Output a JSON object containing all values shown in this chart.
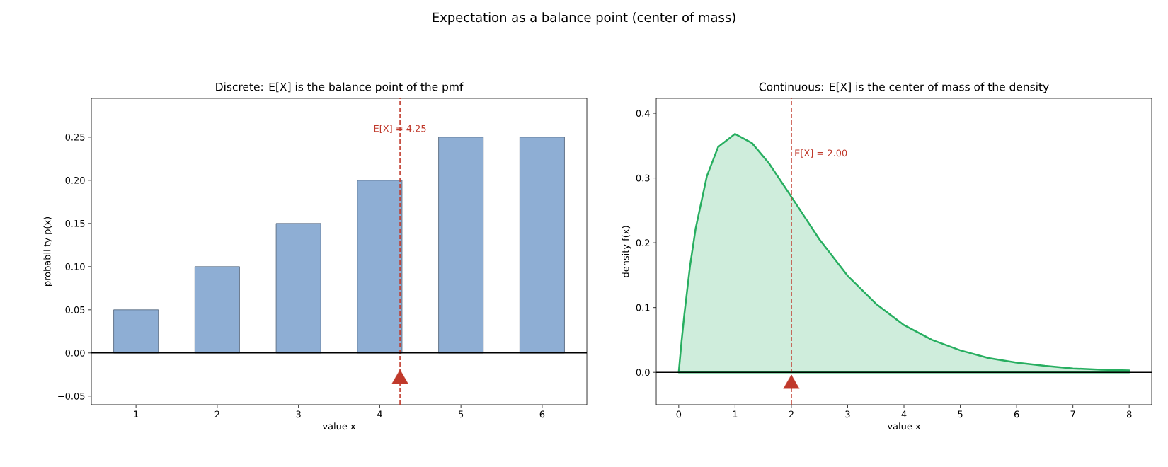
{
  "chart_data": [
    {
      "type": "bar",
      "title": "Discrete: E[X] is the balance point of the pmf",
      "xlabel": "value x",
      "ylabel": "probability p(x)",
      "x": [
        1,
        2,
        3,
        4,
        5,
        6
      ],
      "series": [
        {
          "color": "#8eaed4",
          "values": [
            0.05,
            0.1,
            0.15,
            0.2,
            0.25,
            0.25
          ]
        },
        {
          "type": "scatter",
          "color": "#c0392b",
          "marker": "triangle",
          "x": [
            4.25
          ],
          "values": [
            -0.03
          ]
        }
      ],
      "xlim": [
        0.45,
        6.55
      ],
      "ylim": [
        -0.06,
        0.295
      ],
      "xticks": [
        1,
        2,
        3,
        4,
        5,
        6
      ],
      "yticks": [
        {
          "value": -0.05,
          "label": "−0.05"
        },
        {
          "value": 0,
          "label": "0.00"
        },
        {
          "value": 0.05,
          "label": "0.05"
        },
        {
          "value": 0.1,
          "label": "0.10"
        },
        {
          "value": 0.15,
          "label": "0.15"
        },
        {
          "value": 0.2,
          "label": "0.20"
        },
        {
          "value": 0.25,
          "label": "0.25"
        }
      ],
      "ref_lines": [
        {
          "axis": "x",
          "value": 4.25,
          "label": "E[X] = 4.25",
          "color": "#c0392b",
          "line_style": "dashed"
        },
        {
          "axis": "y",
          "value": 0,
          "color": "#000000",
          "line_style": "solid"
        }
      ],
      "annotations": [
        "Expectation as a balance point (center of mass)"
      ],
      "grid": false
    },
    {
      "type": "area",
      "title": "Continuous: E[X] is the center of mass of the density",
      "xlabel": "value x",
      "ylabel": "density f(x)",
      "series": [
        {
          "color": "#27ae60",
          "x": [
            0,
            0.05,
            0.1,
            0.2,
            0.3,
            0.5,
            0.7,
            1,
            1.3,
            1.6,
            2,
            2.5,
            3,
            3.5,
            4,
            4.5,
            5,
            5.5,
            6,
            6.5,
            7,
            7.5,
            8
          ],
          "values": [
            0,
            0.048,
            0.09,
            0.164,
            0.222,
            0.303,
            0.348,
            0.368,
            0.354,
            0.323,
            0.271,
            0.205,
            0.149,
            0.106,
            0.073,
            0.05,
            0.034,
            0.022,
            0.015,
            0.01,
            0.006,
            0.004,
            0.003
          ]
        },
        {
          "type": "scatter",
          "color": "#c0392b",
          "marker": "triangle",
          "x": [
            2
          ],
          "values": [
            -0.018
          ]
        }
      ],
      "xlim": [
        -0.4,
        8.4
      ],
      "ylim": [
        -0.05,
        0.423
      ],
      "xticks": [
        0,
        1,
        2,
        3,
        4,
        5,
        6,
        7,
        8
      ],
      "yticks": [
        {
          "value": 0,
          "label": "0.0"
        },
        {
          "value": 0.1,
          "label": "0.1"
        },
        {
          "value": 0.2,
          "label": "0.2"
        },
        {
          "value": 0.3,
          "label": "0.3"
        },
        {
          "value": 0.4,
          "label": "0.4"
        }
      ],
      "ref_lines": [
        {
          "axis": "x",
          "value": 2,
          "label": "E[X] = 2.00",
          "color": "#c0392b",
          "line_style": "dashed"
        },
        {
          "axis": "y",
          "value": 0,
          "color": "#000000",
          "line_style": "solid"
        }
      ],
      "grid": false
    }
  ]
}
